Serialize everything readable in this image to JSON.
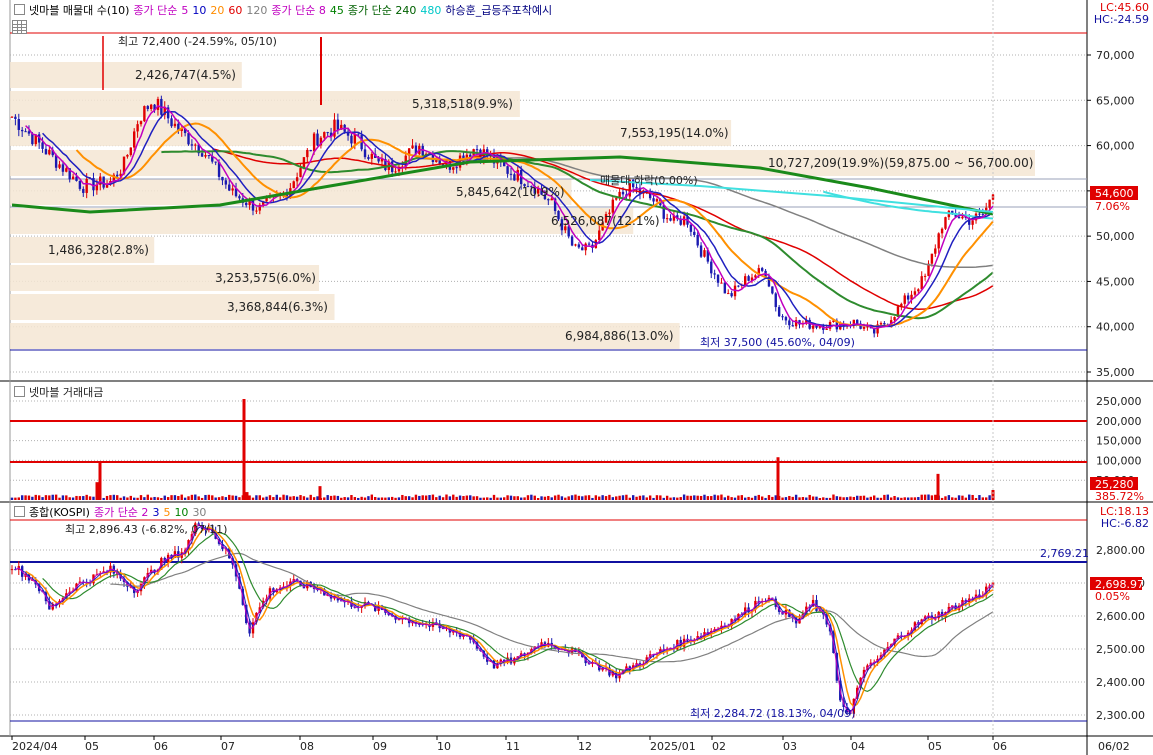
{
  "pane1": {
    "legend": [
      {
        "text": "넷마블 매물대 수(10)",
        "color": "#000000"
      },
      {
        "text": "종가 단순",
        "color": "#c000c0"
      },
      {
        "text": "5",
        "color": "#c000c0"
      },
      {
        "text": "10",
        "color": "#0000c0"
      },
      {
        "text": "20",
        "color": "#ff8c00"
      },
      {
        "text": "60",
        "color": "#e00000"
      },
      {
        "text": "120",
        "color": "#808080"
      },
      {
        "text": "종가 단순 8",
        "color": "#c000c0"
      },
      {
        "text": "45",
        "color": "#008000"
      },
      {
        "text": "종가 단순 240",
        "color": "#006000"
      },
      {
        "text": "480",
        "color": "#00c8c8"
      },
      {
        "text": "하승훈_급등주포착예시",
        "color": "#000080"
      }
    ],
    "lc": "LC:45.60",
    "hc": "HC:-24.59",
    "y_ticks": [
      "70,000",
      "65,000",
      "60,000",
      "55,000",
      "50,000",
      "45,000",
      "40,000",
      "35,000"
    ],
    "price_box": "54,600",
    "price_pct": "7.06%",
    "high_label": "최고 72,400 (-24.59%, 05/10)",
    "low_label": "최저 37,500 (45.60%, 04/09)",
    "mid_label": "매물대 하락(0.00%)",
    "volume_profile": [
      {
        "label": "2,426,747(4.5%)",
        "pct": 4.5
      },
      {
        "label": "5,318,518(9.9%)",
        "pct": 9.9
      },
      {
        "label": "7,553,195(14.0%)",
        "pct": 14.0
      },
      {
        "label": "10,727,209(19.9%)(59,875.00 ~ 56,700.00)",
        "pct": 19.9
      },
      {
        "label": "5,845,642(10.9%)",
        "pct": 10.9
      },
      {
        "label": "6,526,087(12.1%)",
        "pct": 12.1
      },
      {
        "label": "1,486,328(2.8%)",
        "pct": 2.8
      },
      {
        "label": "3,253,575(6.0%)",
        "pct": 6.0
      },
      {
        "label": "3,368,844(6.3%)",
        "pct": 6.3
      },
      {
        "label": "6,984,886(13.0%)",
        "pct": 13.0
      }
    ]
  },
  "pane2": {
    "legend": "넷마블 거래대금",
    "y_ticks": [
      "250,000",
      "200,000",
      "150,000",
      "100,000",
      "50,000"
    ],
    "value_box": "25,280",
    "value_pct": "385.72%"
  },
  "pane3": {
    "legend": [
      {
        "text": "종합(KOSPI)",
        "color": "#000000"
      },
      {
        "text": "종가 단순 2",
        "color": "#c000c0"
      },
      {
        "text": "3",
        "color": "#0000c0"
      },
      {
        "text": "5",
        "color": "#ff8c00"
      },
      {
        "text": "10",
        "color": "#008000"
      },
      {
        "text": "30",
        "color": "#808080"
      }
    ],
    "lc": "LC:18.13",
    "hc": "HC:-6.82",
    "y_ticks": [
      "2,800.00",
      "2,700.00",
      "2,600.00",
      "2,500.00",
      "2,400.00",
      "2,300.00"
    ],
    "level_label": "2,769.21",
    "price_box": "2,698.97",
    "price_pct": "0.05%",
    "high_label": "최고 2,896.43 (-6.82%, 07/11)",
    "low_label": "최저 2,284.72 (18.13%, 04/09)"
  },
  "x_axis": [
    "2024/04",
    "05",
    "06",
    "07",
    "08",
    "09",
    "10",
    "11",
    "12",
    "2025/01",
    "02",
    "03",
    "04",
    "05",
    "06",
    "06/02"
  ],
  "colors": {
    "up": "#e00000",
    "down": "#1a1ab0",
    "ma5": "#c000c0",
    "ma10": "#2020c0",
    "ma20": "#ff9000",
    "ma60": "#e00000",
    "ma120": "#808080",
    "ma45": "#2e8b2e",
    "ma240": "#1a8a1a",
    "ma480": "#40e0e0",
    "profile": "#f5e6d3",
    "grid": "#b0b0b0",
    "hline_red": "#e00000",
    "hline_blue": "#1010a0"
  }
}
